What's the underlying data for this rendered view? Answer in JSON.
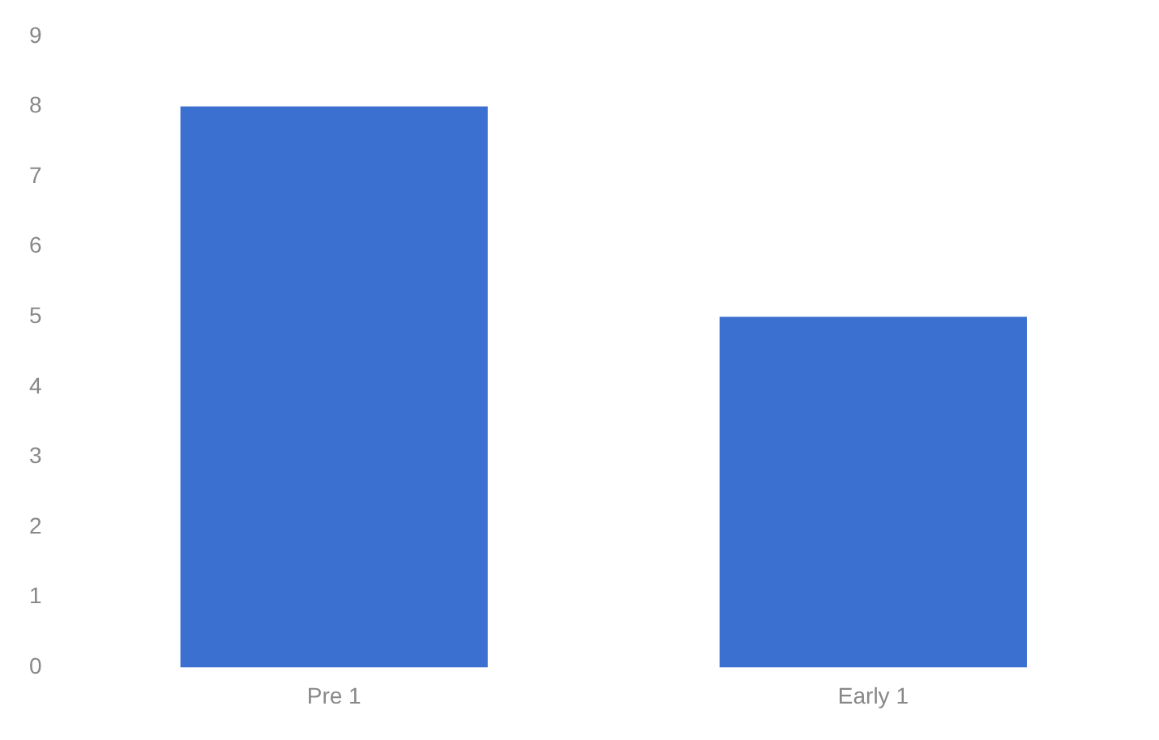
{
  "chart_data": {
    "type": "bar",
    "categories": [
      "Pre 1",
      "Early 1"
    ],
    "values": [
      8,
      5
    ],
    "color": "#3b6fd0",
    "ylim": [
      0,
      9
    ],
    "yticks": [
      0,
      1,
      2,
      3,
      4,
      5,
      6,
      7,
      8,
      9
    ],
    "grid": false,
    "legend": false
  }
}
